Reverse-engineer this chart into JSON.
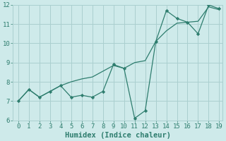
{
  "x": [
    0,
    1,
    2,
    3,
    4,
    5,
    6,
    7,
    8,
    9,
    10,
    11,
    12,
    13,
    14,
    15,
    16,
    17,
    18,
    19
  ],
  "y_jagged": [
    7.0,
    7.6,
    7.2,
    7.5,
    7.8,
    7.2,
    7.3,
    7.2,
    7.5,
    8.9,
    8.7,
    6.1,
    6.5,
    10.1,
    11.7,
    11.3,
    11.1,
    10.5,
    12.0,
    11.8
  ],
  "y_trend": [
    7.0,
    7.6,
    7.2,
    7.5,
    7.8,
    8.0,
    8.15,
    8.25,
    8.55,
    8.85,
    8.7,
    9.0,
    9.1,
    10.1,
    10.65,
    11.05,
    11.1,
    11.15,
    11.9,
    11.75
  ],
  "line_color": "#2e7d6e",
  "bg_color": "#ceeaea",
  "grid_color": "#aacfcf",
  "xlabel": "Humidex (Indice chaleur)",
  "ylim": [
    6,
    12
  ],
  "xlim": [
    -0.5,
    19.3
  ],
  "yticks": [
    6,
    7,
    8,
    9,
    10,
    11,
    12
  ],
  "xticks": [
    0,
    1,
    2,
    3,
    4,
    5,
    6,
    7,
    8,
    9,
    10,
    11,
    12,
    13,
    14,
    15,
    16,
    17,
    18,
    19
  ],
  "tick_fontsize": 6.5,
  "xlabel_fontsize": 7.5
}
